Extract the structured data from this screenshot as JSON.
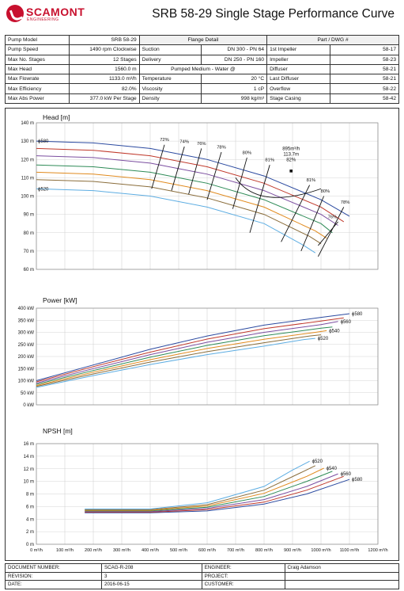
{
  "brand": {
    "name": "SCAMONT",
    "sub": "ENGINEERING",
    "color": "#c8102e"
  },
  "title": "SRB 58-29 Single Stage Performance Curve",
  "spec": {
    "headers": [
      "Flange Detail",
      "Part / DWG #"
    ],
    "rows": [
      {
        "k1": "Pump Model",
        "v1": "SRB 58-29",
        "k2": "",
        "v2": "",
        "k3": "",
        "v3": ""
      },
      {
        "k1": "Pump Speed",
        "v1": "1490 rpm Clockwise",
        "k2": "Suction",
        "v2": "DN 300 - PN 64",
        "k3": "1st Impeller",
        "v3": "58-17"
      },
      {
        "k1": "Max No. Stages",
        "v1": "12 Stages",
        "k2": "Delivery",
        "v2": "DN 250 - PN 160",
        "k3": "Impeller",
        "v3": "58-23"
      },
      {
        "k1": "Max Head",
        "v1": "1560.0 m",
        "k2": "Pumped Medium - Water @",
        "v2": "",
        "k3": "Diffuser",
        "v3": "58-21"
      },
      {
        "k1": "Max Flowrate",
        "v1": "1133.0 m³/h",
        "k2": "Temperature",
        "v2": "20 °C",
        "k3": "Last Diffuser",
        "v3": "58-21"
      },
      {
        "k1": "Max Efficiency",
        "v1": "82.0%",
        "k2": "Viscosity",
        "v2": "1 cP",
        "k3": "Overflow",
        "v3": "58-22"
      },
      {
        "k1": "Max Abs Power",
        "v1": "377.0 kW Per Stage",
        "k2": "Density",
        "v2": "998 kg/m³",
        "k3": "Stage Casing",
        "v3": "58-42"
      }
    ]
  },
  "footer": [
    {
      "k1": "DOCUMENT NUMBER:",
      "v1": "SCAG-R-208",
      "k2": "ENGINEER:",
      "v2": "Craig Adamson"
    },
    {
      "k1": "REVISION:",
      "v1": "3",
      "k2": "PROJECT:",
      "v2": ""
    },
    {
      "k1": "DATE:",
      "v1": "2016-06-15",
      "k2": "CUSTOMER:",
      "v2": ""
    }
  ],
  "chart_data": [
    {
      "type": "line",
      "title": "Head [m]",
      "ylim": [
        60,
        140
      ],
      "yticks": [
        "60 m",
        "70 m",
        "80 m",
        "90 m",
        "100 m",
        "110 m",
        "120 m",
        "130 m",
        "140 m"
      ],
      "xlim": [
        0,
        1200
      ],
      "grid": true,
      "series": [
        {
          "name": "ϕ580",
          "color": "#2b4aa0",
          "x": [
            0,
            200,
            400,
            600,
            800,
            1000,
            1100
          ],
          "y": [
            130,
            129,
            126,
            120,
            111,
            98,
            89
          ]
        },
        {
          "name": "",
          "color": "#c0392b",
          "x": [
            0,
            200,
            400,
            600,
            800,
            1000,
            1080
          ],
          "y": [
            126,
            125,
            122,
            116,
            107,
            94,
            86
          ]
        },
        {
          "name": "",
          "color": "#7b4ea0",
          "x": [
            0,
            200,
            400,
            600,
            800,
            1000,
            1060
          ],
          "y": [
            122,
            121,
            118,
            112,
            103,
            90,
            84
          ]
        },
        {
          "name": "",
          "color": "#2e8b57",
          "x": [
            0,
            200,
            400,
            600,
            800,
            1000,
            1040
          ],
          "y": [
            117,
            116,
            113,
            107,
            98,
            85,
            80
          ]
        },
        {
          "name": "",
          "color": "#e08a1e",
          "x": [
            0,
            200,
            400,
            600,
            800,
            980,
            1020
          ],
          "y": [
            113,
            112,
            109,
            103,
            94,
            81,
            77
          ]
        },
        {
          "name": "",
          "color": "#8a6d3b",
          "x": [
            0,
            200,
            400,
            600,
            800,
            960,
            1000
          ],
          "y": [
            109,
            108,
            105,
            99,
            90,
            78,
            74
          ]
        },
        {
          "name": "ϕ520",
          "color": "#5dade2",
          "x": [
            0,
            200,
            400,
            600,
            800,
            940,
            980
          ],
          "y": [
            104,
            103,
            100,
            94,
            85,
            73,
            69
          ]
        }
      ],
      "efficiency_labels": [
        "72%",
        "74%",
        "76%",
        "78%",
        "80%",
        "81%",
        "81%",
        "80%",
        "78%",
        "76%"
      ],
      "bep_labels": [
        "895m³/h",
        "113.7m",
        "82%"
      ]
    },
    {
      "type": "line",
      "title": "Power [kW]",
      "ylim": [
        0,
        400
      ],
      "yticks": [
        "0 kW",
        "50 kW",
        "100 kW",
        "150 kW",
        "200 kW",
        "250 kW",
        "300 kW",
        "350 kW",
        "400 kW"
      ],
      "xlim": [
        0,
        1200
      ],
      "grid": true,
      "series": [
        {
          "name": "ϕ580",
          "color": "#2b4aa0",
          "x": [
            0,
            200,
            400,
            600,
            800,
            1000,
            1100
          ],
          "y": [
            100,
            165,
            230,
            285,
            330,
            362,
            377
          ]
        },
        {
          "name": "",
          "color": "#c0392b",
          "x": [
            0,
            200,
            400,
            600,
            800,
            1000,
            1080
          ],
          "y": [
            95,
            158,
            218,
            272,
            315,
            347,
            360
          ]
        },
        {
          "name": "ϕ560",
          "color": "#7b4ea0",
          "x": [
            0,
            200,
            400,
            600,
            800,
            1000,
            1060
          ],
          "y": [
            90,
            150,
            208,
            259,
            300,
            332,
            345
          ]
        },
        {
          "name": "",
          "color": "#2e8b57",
          "x": [
            0,
            200,
            400,
            600,
            800,
            1000,
            1040
          ],
          "y": [
            85,
            142,
            197,
            246,
            286,
            317,
            322
          ]
        },
        {
          "name": "ϕ540",
          "color": "#e08a1e",
          "x": [
            0,
            200,
            400,
            600,
            800,
            980,
            1020
          ],
          "y": [
            80,
            135,
            187,
            233,
            271,
            300,
            307
          ]
        },
        {
          "name": "",
          "color": "#8a6d3b",
          "x": [
            0,
            200,
            400,
            600,
            800,
            960,
            1000
          ],
          "y": [
            76,
            128,
            177,
            220,
            257,
            285,
            290
          ]
        },
        {
          "name": "ϕ520",
          "color": "#5dade2",
          "x": [
            0,
            200,
            400,
            600,
            800,
            940,
            980
          ],
          "y": [
            72,
            121,
            167,
            208,
            243,
            270,
            275
          ]
        }
      ]
    },
    {
      "type": "line",
      "title": "NPSH [m]",
      "ylim": [
        0,
        16
      ],
      "yticks": [
        "0 m",
        "2 m",
        "4 m",
        "6 m",
        "8 m",
        "10 m",
        "12 m",
        "14 m",
        "16 m"
      ],
      "xlim": [
        0,
        1200
      ],
      "xticks": [
        "0 m³/h",
        "100 m³/h",
        "200 m³/h",
        "300 m³/h",
        "400 m³/h",
        "500 m³/h",
        "600 m³/h",
        "700 m³/h",
        "800 m³/h",
        "900 m³/h",
        "1000 m³/h",
        "1100 m³/h",
        "1200 m³/h"
      ],
      "grid": true,
      "series": [
        {
          "name": "ϕ580",
          "color": "#2b4aa0",
          "x": [
            170,
            400,
            600,
            800,
            950,
            1100
          ],
          "y": [
            5.0,
            5.0,
            5.3,
            6.4,
            8.0,
            10.3
          ]
        },
        {
          "name": "",
          "color": "#c0392b",
          "x": [
            170,
            400,
            600,
            800,
            950,
            1080
          ],
          "y": [
            5.1,
            5.1,
            5.5,
            6.7,
            8.6,
            10.8
          ]
        },
        {
          "name": "ϕ560",
          "color": "#7b4ea0",
          "x": [
            170,
            400,
            600,
            800,
            950,
            1060
          ],
          "y": [
            5.2,
            5.2,
            5.7,
            7.1,
            9.2,
            11.2
          ]
        },
        {
          "name": "",
          "color": "#2e8b57",
          "x": [
            170,
            400,
            600,
            800,
            950,
            1040
          ],
          "y": [
            5.3,
            5.3,
            5.9,
            7.6,
            10.0,
            11.6
          ]
        },
        {
          "name": "ϕ540",
          "color": "#e08a1e",
          "x": [
            170,
            400,
            600,
            800,
            950,
            1010
          ],
          "y": [
            5.4,
            5.4,
            6.1,
            8.1,
            10.8,
            12.1
          ]
        },
        {
          "name": "",
          "color": "#8a6d3b",
          "x": [
            170,
            400,
            600,
            800,
            930,
            980
          ],
          "y": [
            5.5,
            5.5,
            6.3,
            8.6,
            11.4,
            12.5
          ]
        },
        {
          "name": "ϕ520",
          "color": "#5dade2",
          "x": [
            170,
            400,
            600,
            800,
            900,
            960
          ],
          "y": [
            5.6,
            5.6,
            6.6,
            9.2,
            11.8,
            13.2
          ]
        }
      ]
    }
  ]
}
